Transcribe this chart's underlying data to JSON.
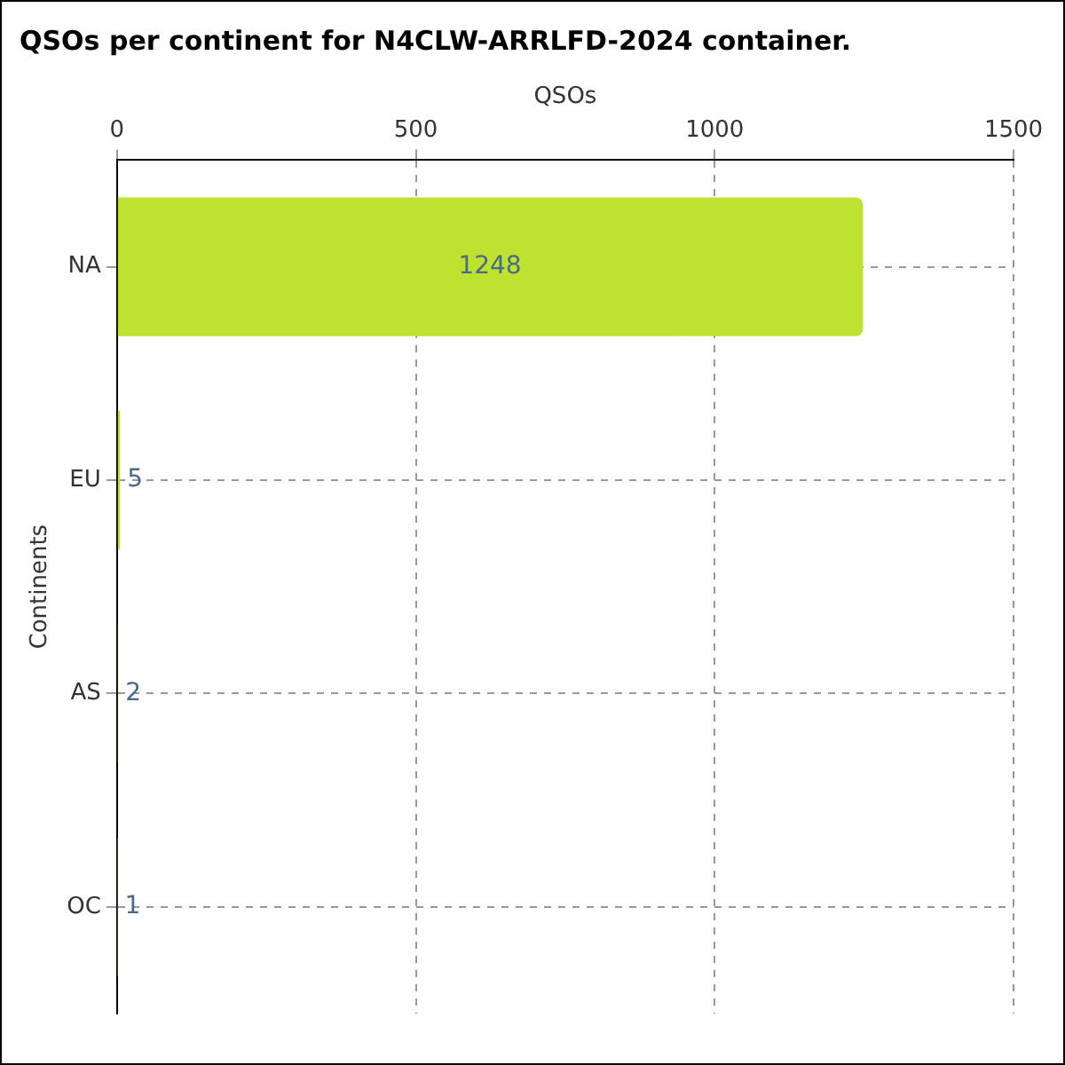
{
  "chart_data": {
    "type": "bar",
    "orientation": "horizontal",
    "title": "QSOs per continent for N4CLW-ARRLFD-2024 container.",
    "xlabel": "QSOs",
    "ylabel": "Continents",
    "categories": [
      "NA",
      "EU",
      "AS",
      "OC"
    ],
    "values": [
      1248,
      5,
      2,
      1
    ],
    "color": "#bde22f",
    "xlim": [
      0,
      1500
    ],
    "xticks": [
      0,
      500,
      1000,
      1500
    ],
    "grid": true,
    "data_labels": true,
    "legend": false
  }
}
